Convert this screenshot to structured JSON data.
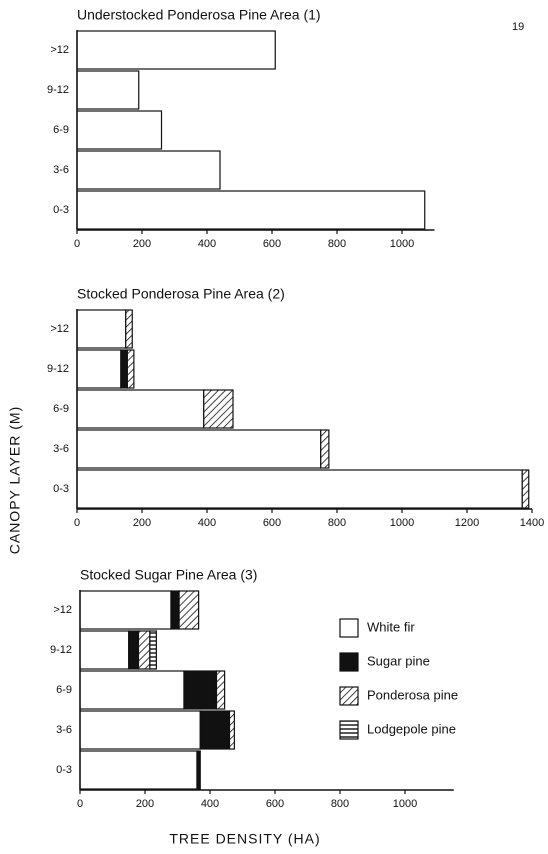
{
  "page_number": "19",
  "y_label": "CANOPY  LAYER  (M)",
  "x_label": "TREE DENSITY (HA)",
  "chart_data": [
    {
      "type": "bar",
      "orientation": "horizontal",
      "title": "Understocked Ponderosa Pine Area (1)",
      "categories": [
        ">12",
        "9-12",
        "6-9",
        "3-6",
        "0-3"
      ],
      "series": [
        {
          "pattern": "white",
          "values": [
            610,
            190,
            260,
            440,
            1070
          ]
        }
      ],
      "xlim": [
        0,
        1100
      ],
      "xticks": [
        0,
        200,
        400,
        600,
        800,
        1000
      ]
    },
    {
      "type": "bar",
      "orientation": "horizontal",
      "title": "Stocked Ponderosa Pine Area (2)",
      "categories": [
        ">12",
        "9-12",
        "6-9",
        "3-6",
        "0-3"
      ],
      "series": [
        {
          "pattern": "white",
          "values": [
            150,
            135,
            390,
            750,
            1370
          ]
        },
        {
          "pattern": "black",
          "values": [
            null,
            20,
            null,
            null,
            null
          ]
        },
        {
          "pattern": "diagonal",
          "values": [
            20,
            20,
            90,
            25,
            20
          ]
        }
      ],
      "xlim": [
        0,
        1400
      ],
      "xticks": [
        0,
        200,
        400,
        600,
        800,
        1000,
        1200,
        1400
      ]
    },
    {
      "type": "bar",
      "orientation": "horizontal",
      "title": "Stocked Sugar Pine Area (3)",
      "categories": [
        ">12",
        "9-12",
        "6-9",
        "3-6",
        "0-3"
      ],
      "series": [
        {
          "name": "White fir",
          "pattern": "white",
          "values": [
            280,
            150,
            320,
            370,
            360
          ]
        },
        {
          "name": "Sugar pine",
          "pattern": "black",
          "values": [
            25,
            30,
            100,
            90,
            10
          ]
        },
        {
          "name": "Ponderosa pine",
          "pattern": "diagonal",
          "values": [
            60,
            35,
            25,
            15,
            null
          ]
        },
        {
          "name": "Lodgepole pine",
          "pattern": "horizontal",
          "values": [
            null,
            20,
            null,
            null,
            null
          ]
        }
      ],
      "xlim": [
        0,
        1150
      ],
      "xticks": [
        0,
        200,
        400,
        600,
        800,
        1000
      ],
      "legend": true
    }
  ]
}
